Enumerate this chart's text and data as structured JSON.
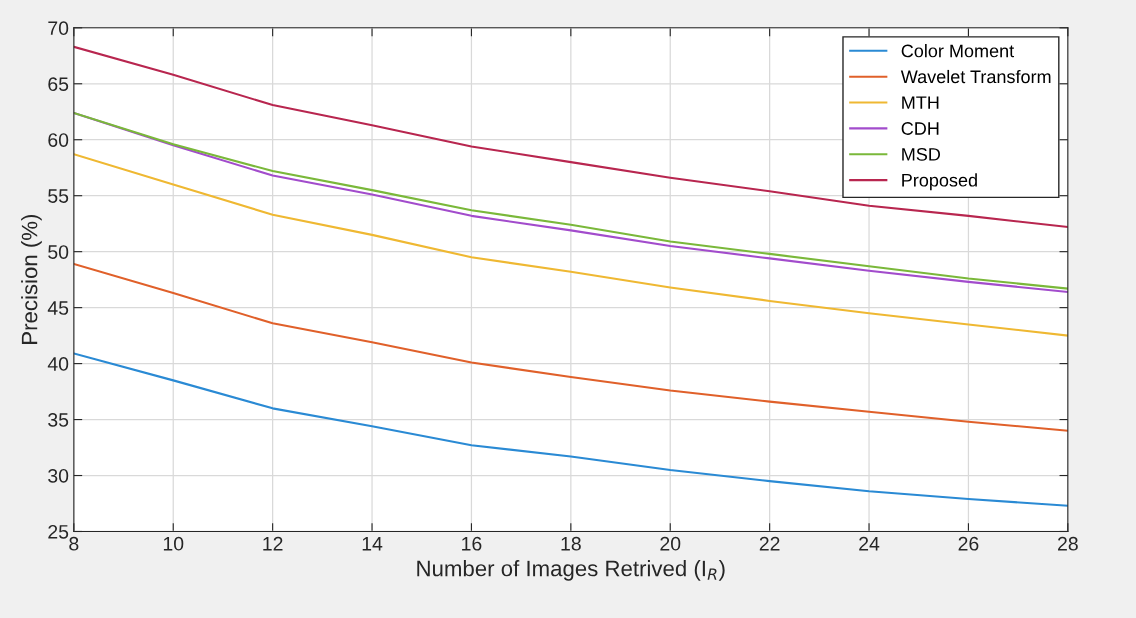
{
  "chart_data": {
    "type": "line",
    "xlabel": "Number of Images Retrived (I$_{R}$)",
    "ylabel": "Precision (%)",
    "x": [
      8,
      10,
      12,
      14,
      16,
      18,
      20,
      22,
      24,
      26,
      28
    ],
    "xlim": [
      8,
      28
    ],
    "xticks": [
      8,
      10,
      12,
      14,
      16,
      18,
      20,
      22,
      24,
      26,
      28
    ],
    "ylim": [
      25,
      70
    ],
    "yticks": [
      25,
      30,
      35,
      40,
      45,
      50,
      55,
      60,
      65,
      70
    ],
    "grid": true,
    "legend": "top right",
    "marker": "none",
    "line_style": "solid",
    "series": [
      {
        "name": "Color Moment",
        "color": "#2a8ad4",
        "values": [
          40.9,
          38.5,
          36.0,
          34.4,
          32.7,
          31.7,
          30.5,
          29.5,
          28.6,
          27.9,
          27.3
        ]
      },
      {
        "name": "Wavelet Transform",
        "color": "#e0602a",
        "values": [
          48.9,
          46.3,
          43.6,
          41.9,
          40.1,
          38.8,
          37.6,
          36.6,
          35.7,
          34.8,
          34.0
        ]
      },
      {
        "name": "MTH",
        "color": "#efb832",
        "values": [
          58.7,
          56.0,
          53.3,
          51.5,
          49.5,
          48.2,
          46.8,
          45.6,
          44.5,
          43.5,
          42.5
        ]
      },
      {
        "name": "CDH",
        "color": "#a24ccc",
        "values": [
          62.4,
          59.5,
          56.8,
          55.1,
          53.2,
          51.9,
          50.5,
          49.4,
          48.3,
          47.3,
          46.4
        ]
      },
      {
        "name": "MSD",
        "color": "#7ab83a",
        "values": [
          62.4,
          59.6,
          57.2,
          55.5,
          53.7,
          52.4,
          50.9,
          49.8,
          48.7,
          47.6,
          46.7
        ]
      },
      {
        "name": "Proposed",
        "color": "#b8264f",
        "values": [
          68.3,
          65.8,
          63.1,
          61.3,
          59.4,
          58.0,
          56.6,
          55.4,
          54.1,
          53.2,
          52.2
        ]
      }
    ]
  }
}
